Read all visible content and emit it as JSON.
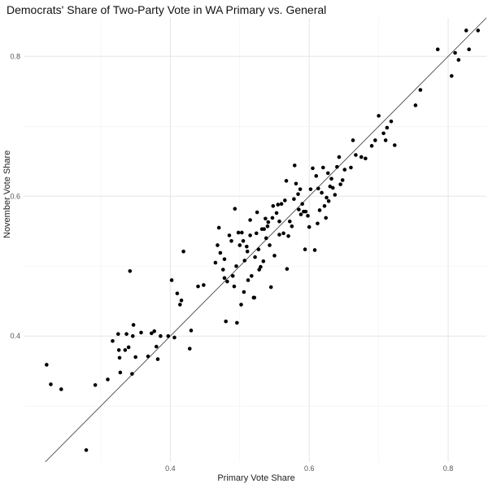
{
  "chart_data": {
    "type": "scatter",
    "title": "Democrats' Share of Two-Party Vote in WA Primary vs. General",
    "xlabel": "Primary Vote Share",
    "ylabel": "November Vote Share",
    "xlim": [
      0.19,
      0.855
    ],
    "ylim": [
      0.22,
      0.855
    ],
    "x_ticks": [
      0.4,
      0.6,
      0.8
    ],
    "y_ticks": [
      0.4,
      0.6,
      0.8
    ],
    "x_tick_labels": [
      "0.4",
      "0.6",
      "0.8"
    ],
    "y_tick_labels": [
      "0.4",
      "0.6",
      "0.8"
    ],
    "grid": true,
    "reference_line": {
      "type": "identity",
      "color": "#333333"
    },
    "point_color": "#000000",
    "points": [
      [
        0.222,
        0.359
      ],
      [
        0.228,
        0.331
      ],
      [
        0.243,
        0.324
      ],
      [
        0.279,
        0.237
      ],
      [
        0.292,
        0.33
      ],
      [
        0.31,
        0.338
      ],
      [
        0.317,
        0.393
      ],
      [
        0.325,
        0.403
      ],
      [
        0.326,
        0.38
      ],
      [
        0.327,
        0.369
      ],
      [
        0.328,
        0.348
      ],
      [
        0.335,
        0.38
      ],
      [
        0.337,
        0.403
      ],
      [
        0.34,
        0.384
      ],
      [
        0.342,
        0.493
      ],
      [
        0.345,
        0.346
      ],
      [
        0.346,
        0.4
      ],
      [
        0.347,
        0.416
      ],
      [
        0.35,
        0.37
      ],
      [
        0.358,
        0.405
      ],
      [
        0.368,
        0.371
      ],
      [
        0.373,
        0.404
      ],
      [
        0.377,
        0.407
      ],
      [
        0.38,
        0.385
      ],
      [
        0.382,
        0.367
      ],
      [
        0.386,
        0.4
      ],
      [
        0.397,
        0.4
      ],
      [
        0.402,
        0.48
      ],
      [
        0.406,
        0.398
      ],
      [
        0.41,
        0.461
      ],
      [
        0.414,
        0.445
      ],
      [
        0.416,
        0.451
      ],
      [
        0.419,
        0.521
      ],
      [
        0.428,
        0.382
      ],
      [
        0.43,
        0.408
      ],
      [
        0.44,
        0.471
      ],
      [
        0.448,
        0.473
      ],
      [
        0.465,
        0.505
      ],
      [
        0.468,
        0.53
      ],
      [
        0.47,
        0.555
      ],
      [
        0.472,
        0.519
      ],
      [
        0.476,
        0.495
      ],
      [
        0.478,
        0.483
      ],
      [
        0.478,
        0.51
      ],
      [
        0.48,
        0.421
      ],
      [
        0.482,
        0.478
      ],
      [
        0.485,
        0.544
      ],
      [
        0.488,
        0.536
      ],
      [
        0.49,
        0.486
      ],
      [
        0.492,
        0.471
      ],
      [
        0.493,
        0.582
      ],
      [
        0.495,
        0.5
      ],
      [
        0.496,
        0.419
      ],
      [
        0.498,
        0.548
      ],
      [
        0.5,
        0.53
      ],
      [
        0.502,
        0.445
      ],
      [
        0.503,
        0.548
      ],
      [
        0.505,
        0.536
      ],
      [
        0.506,
        0.463
      ],
      [
        0.507,
        0.508
      ],
      [
        0.51,
        0.528
      ],
      [
        0.511,
        0.521
      ],
      [
        0.512,
        0.48
      ],
      [
        0.515,
        0.544
      ],
      [
        0.515,
        0.566
      ],
      [
        0.517,
        0.486
      ],
      [
        0.52,
        0.455
      ],
      [
        0.521,
        0.455
      ],
      [
        0.522,
        0.513
      ],
      [
        0.524,
        0.547
      ],
      [
        0.525,
        0.577
      ],
      [
        0.527,
        0.524
      ],
      [
        0.528,
        0.495
      ],
      [
        0.53,
        0.499
      ],
      [
        0.532,
        0.553
      ],
      [
        0.534,
        0.507
      ],
      [
        0.535,
        0.553
      ],
      [
        0.537,
        0.568
      ],
      [
        0.538,
        0.54
      ],
      [
        0.54,
        0.557
      ],
      [
        0.541,
        0.563
      ],
      [
        0.543,
        0.53
      ],
      [
        0.545,
        0.47
      ],
      [
        0.547,
        0.569
      ],
      [
        0.548,
        0.586
      ],
      [
        0.55,
        0.515
      ],
      [
        0.553,
        0.576
      ],
      [
        0.555,
        0.588
      ],
      [
        0.557,
        0.564
      ],
      [
        0.557,
        0.545
      ],
      [
        0.56,
        0.589
      ],
      [
        0.563,
        0.547
      ],
      [
        0.565,
        0.594
      ],
      [
        0.567,
        0.622
      ],
      [
        0.568,
        0.496
      ],
      [
        0.57,
        0.543
      ],
      [
        0.572,
        0.564
      ],
      [
        0.575,
        0.557
      ],
      [
        0.578,
        0.596
      ],
      [
        0.579,
        0.644
      ],
      [
        0.581,
        0.618
      ],
      [
        0.584,
        0.603
      ],
      [
        0.585,
        0.581
      ],
      [
        0.587,
        0.61
      ],
      [
        0.588,
        0.574
      ],
      [
        0.59,
        0.589
      ],
      [
        0.592,
        0.578
      ],
      [
        0.594,
        0.524
      ],
      [
        0.595,
        0.578
      ],
      [
        0.598,
        0.572
      ],
      [
        0.6,
        0.556
      ],
      [
        0.602,
        0.61
      ],
      [
        0.605,
        0.64
      ],
      [
        0.608,
        0.523
      ],
      [
        0.61,
        0.629
      ],
      [
        0.612,
        0.561
      ],
      [
        0.613,
        0.611
      ],
      [
        0.615,
        0.58
      ],
      [
        0.618,
        0.605
      ],
      [
        0.62,
        0.641
      ],
      [
        0.622,
        0.586
      ],
      [
        0.624,
        0.569
      ],
      [
        0.625,
        0.598
      ],
      [
        0.627,
        0.633
      ],
      [
        0.628,
        0.593
      ],
      [
        0.63,
        0.614
      ],
      [
        0.632,
        0.625
      ],
      [
        0.634,
        0.612
      ],
      [
        0.637,
        0.602
      ],
      [
        0.64,
        0.642
      ],
      [
        0.643,
        0.656
      ],
      [
        0.645,
        0.617
      ],
      [
        0.648,
        0.623
      ],
      [
        0.651,
        0.638
      ],
      [
        0.66,
        0.641
      ],
      [
        0.663,
        0.68
      ],
      [
        0.667,
        0.659
      ],
      [
        0.675,
        0.656
      ],
      [
        0.681,
        0.654
      ],
      [
        0.69,
        0.672
      ],
      [
        0.695,
        0.68
      ],
      [
        0.7,
        0.715
      ],
      [
        0.707,
        0.69
      ],
      [
        0.71,
        0.68
      ],
      [
        0.712,
        0.698
      ],
      [
        0.718,
        0.707
      ],
      [
        0.723,
        0.673
      ],
      [
        0.753,
        0.73
      ],
      [
        0.76,
        0.752
      ],
      [
        0.785,
        0.81
      ],
      [
        0.805,
        0.772
      ],
      [
        0.81,
        0.805
      ],
      [
        0.815,
        0.795
      ],
      [
        0.826,
        0.837
      ],
      [
        0.83,
        0.81
      ],
      [
        0.843,
        0.837
      ]
    ]
  }
}
